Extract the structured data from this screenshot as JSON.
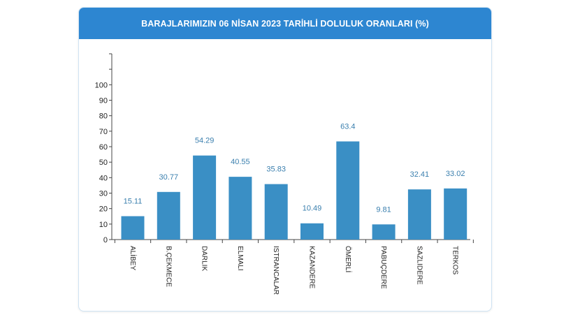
{
  "header": {
    "title": "BARAJLARIMIZIN 06 NİSAN 2023 TARİHLİ DOLULUK ORANLARI (%)"
  },
  "colors": {
    "header": "#2d86d1",
    "bar": "#3a8fc5",
    "value_label": "#3a7fae",
    "axis": "#444444"
  },
  "chart_data": {
    "type": "bar",
    "title": "BARAJLARIMIZIN 06 NİSAN 2023 TARİHLİ DOLULUK ORANLARI (%)",
    "categories": [
      "ALİBEY",
      "B.ÇEKMECE",
      "DARLIK",
      "ELMALI",
      "ISTRANCALAR",
      "KAZANDERE",
      "ÖMERLİ",
      "PABUÇDERE",
      "SAZLIDERE",
      "TERKOS"
    ],
    "values": [
      15.11,
      30.77,
      54.29,
      40.55,
      35.83,
      10.49,
      63.4,
      9.81,
      32.41,
      33.02
    ],
    "value_labels": [
      "15.11",
      "30.77",
      "54.29",
      "40.55",
      "35.83",
      "10.49",
      "63.4",
      "9.81",
      "32.41",
      "33.02"
    ],
    "yticks": [
      0,
      10,
      20,
      30,
      40,
      50,
      60,
      70,
      80,
      90,
      100
    ],
    "ylim": [
      0,
      120
    ],
    "xlabel": "",
    "ylabel": "",
    "grid": false,
    "legend": "none"
  }
}
